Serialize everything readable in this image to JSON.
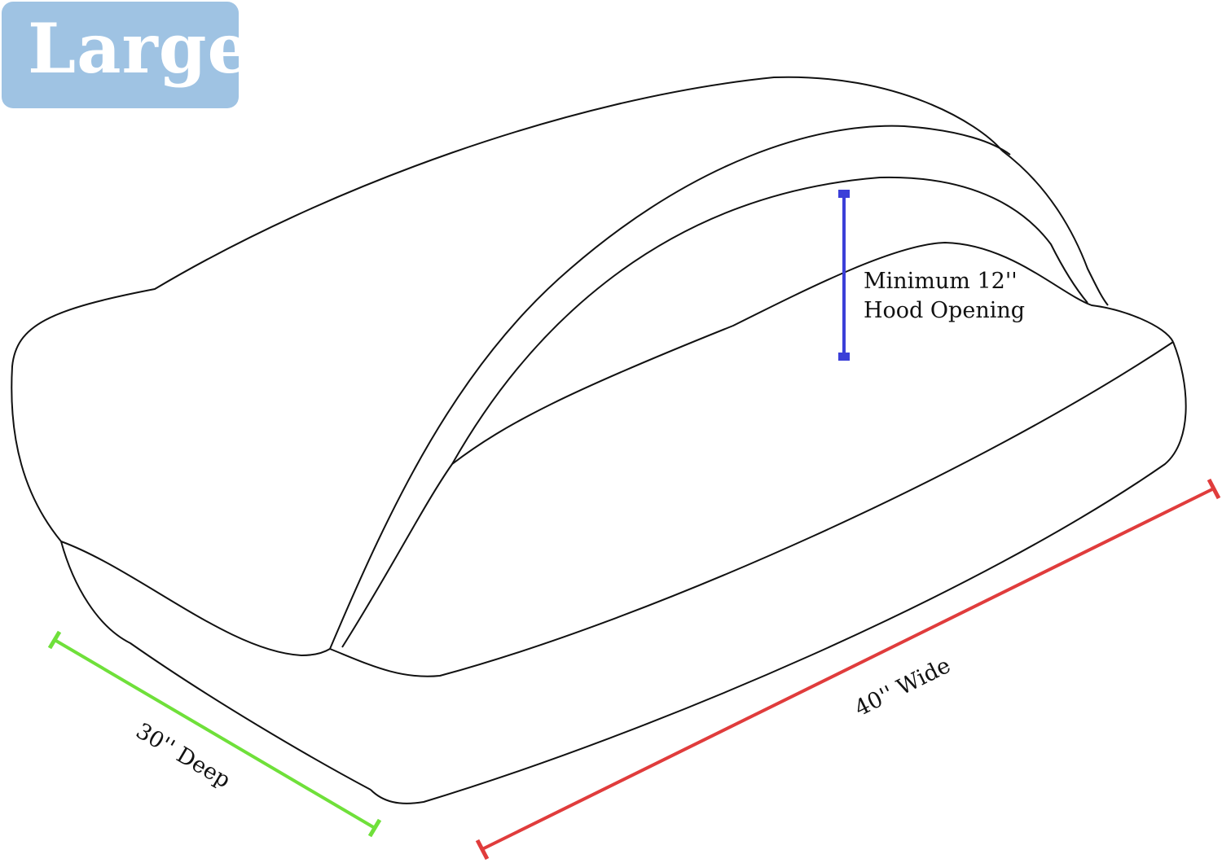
{
  "size_label": "Large",
  "colors": {
    "badge": "#9fc3e3",
    "height": "#3b3fd8",
    "width": "#e03c3c",
    "depth": "#6fe03a"
  },
  "measurements": {
    "height": {
      "line1": "Minimum 12''",
      "line2": "Hood Opening"
    },
    "width": "40'' Wide",
    "depth": "30'' Deep"
  }
}
